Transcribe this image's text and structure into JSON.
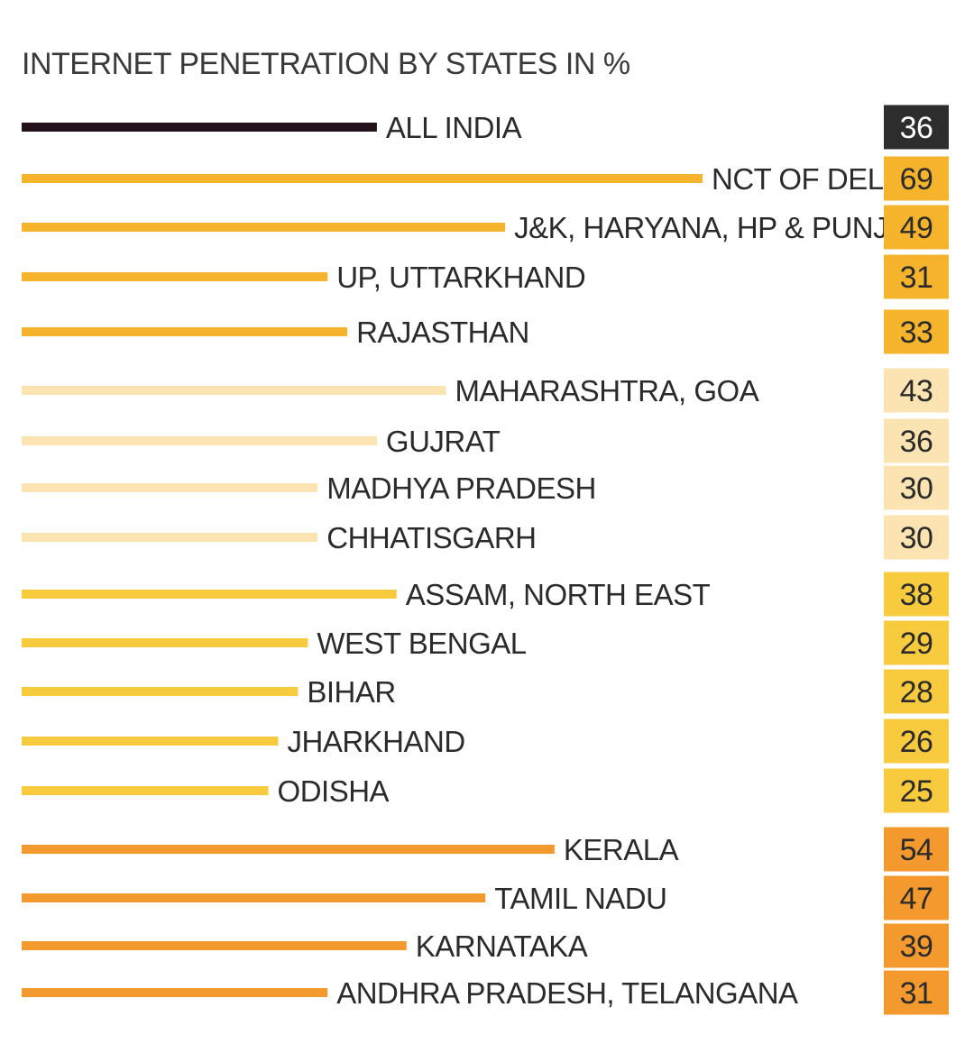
{
  "chart_data": {
    "type": "bar",
    "orientation": "horizontal",
    "title": "INTERNET PENETRATION BY STATES IN %",
    "unit": "%",
    "xlim": [
      0,
      69
    ],
    "grid": false,
    "legend": "none",
    "rows": [
      {
        "label": "ALL INDIA",
        "value": 36,
        "group": "national"
      },
      {
        "label": "NCT OF DELHI",
        "value": 69,
        "group": "north"
      },
      {
        "label": "J&K, HARYANA, HP & PUNJAB",
        "value": 49,
        "group": "north"
      },
      {
        "label": "UP, UTTARKHAND",
        "value": 31,
        "group": "north"
      },
      {
        "label": "RAJASTHAN",
        "value": 33,
        "group": "north"
      },
      {
        "label": "MAHARASHTRA, GOA",
        "value": 43,
        "group": "west"
      },
      {
        "label": "GUJRAT",
        "value": 36,
        "group": "west"
      },
      {
        "label": "MADHYA PRADESH",
        "value": 30,
        "group": "west"
      },
      {
        "label": "CHHATISGARH",
        "value": 30,
        "group": "west"
      },
      {
        "label": "ASSAM, NORTH EAST",
        "value": 38,
        "group": "east"
      },
      {
        "label": "WEST BENGAL",
        "value": 29,
        "group": "east"
      },
      {
        "label": "BIHAR",
        "value": 28,
        "group": "east"
      },
      {
        "label": "JHARKHAND",
        "value": 26,
        "group": "east"
      },
      {
        "label": "ODISHA",
        "value": 25,
        "group": "east"
      },
      {
        "label": "KERALA",
        "value": 54,
        "group": "south"
      },
      {
        "label": "TAMIL NADU",
        "value": 47,
        "group": "south"
      },
      {
        "label": "KARNATAKA",
        "value": 39,
        "group": "south"
      },
      {
        "label": "ANDHRA PRADESH, TELANGANA",
        "value": 31,
        "group": "south"
      }
    ],
    "colors": {
      "national": {
        "bar": "#24131c",
        "box": "#2d2d2d",
        "text": "#ffffff"
      },
      "north": {
        "bar": "#f6b42c",
        "box": "#f6b42c",
        "text": "#2b2b2b"
      },
      "west": {
        "bar": "#fbe3b2",
        "box": "#fbe3b2",
        "text": "#2b2b2b"
      },
      "east": {
        "bar": "#f8ca3e",
        "box": "#f8ca3e",
        "text": "#2b2b2b"
      },
      "south": {
        "bar": "#f3992d",
        "box": "#f3992d",
        "text": "#2b2b2b"
      }
    }
  }
}
